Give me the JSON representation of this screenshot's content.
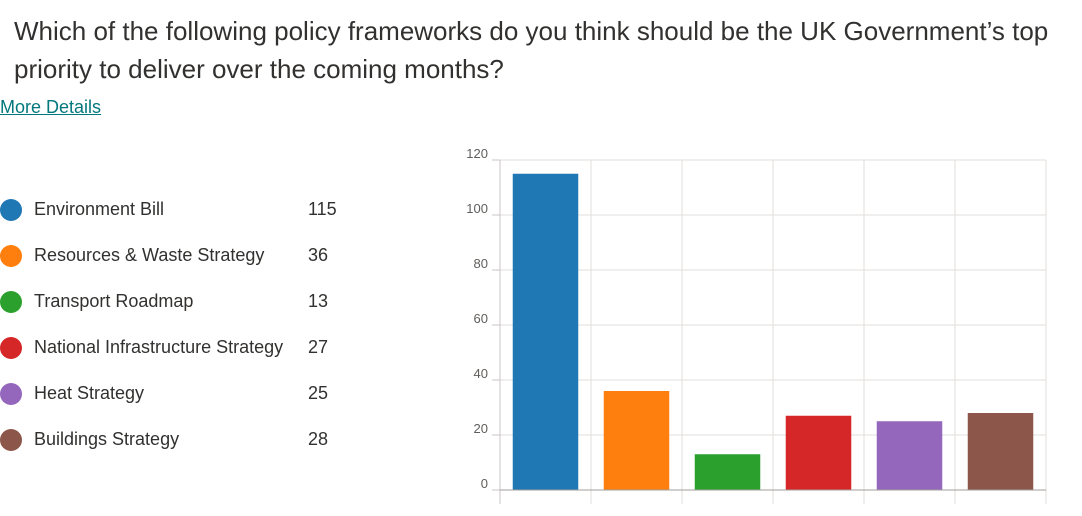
{
  "question": {
    "title": "Which of the following policy frameworks do you think should be the UK Government’s top priority to deliver over the coming months?"
  },
  "more_details_label": "More Details",
  "chart_data": {
    "type": "bar",
    "categories": [
      "Environment Bill",
      "Resources & Waste Strategy",
      "Transport Roadmap",
      "National Infrastructure Strategy",
      "Heat Strategy",
      "Buildings Strategy"
    ],
    "values": [
      115,
      36,
      13,
      27,
      25,
      28
    ],
    "colors": [
      "#1f77b4",
      "#ff7f0e",
      "#2ca02c",
      "#d62728",
      "#9467bd",
      "#8c564b"
    ],
    "ylim": [
      0,
      120
    ],
    "yticks": [
      0,
      20,
      40,
      60,
      80,
      100,
      120
    ],
    "grid": true,
    "legend_position": "left"
  }
}
